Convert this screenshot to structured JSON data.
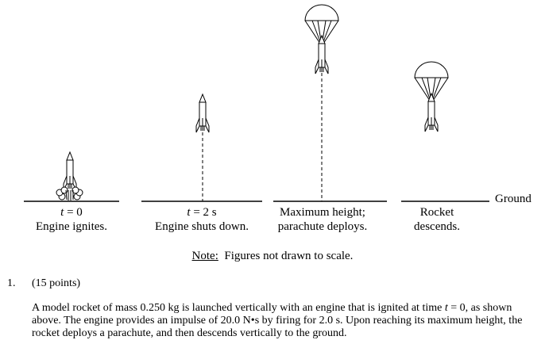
{
  "figure": {
    "ground_label": "Ground",
    "note_label": "Note:",
    "note_text": "Figures not drawn to scale.",
    "panels": [
      {
        "caption_time_var": "t",
        "caption_time_rest": " = 0",
        "caption_desc": "Engine ignites."
      },
      {
        "caption_time_var": "t",
        "caption_time_rest": " = 2 s",
        "caption_desc": "Engine shuts down."
      },
      {
        "caption_line1": "Maximum height;",
        "caption_line2": "parachute deploys."
      },
      {
        "caption_line1": "Rocket",
        "caption_line2": "descends."
      }
    ]
  },
  "question": {
    "number": "1.",
    "points": "(15 points)",
    "text_part1": "A model rocket of mass 0.250 kg is launched vertically with an engine that is ignited at time ",
    "text_var": "t",
    "text_part2": " = 0, as shown above. The engine provides an impulse of 20.0 N•s by firing for 2.0 s. Upon reaching its maximum height, the rocket deploys a parachute, and then descends vertically to the ground."
  }
}
